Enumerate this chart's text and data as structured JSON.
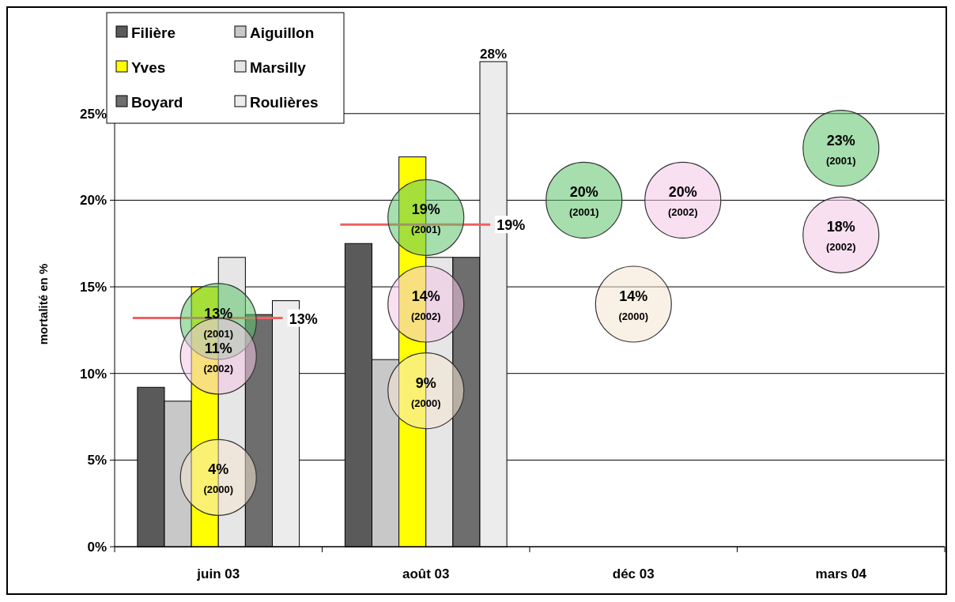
{
  "chart_data": {
    "type": "bar",
    "ylabel": "mortalité en %",
    "categories": [
      "juin 03",
      "août 03",
      "déc 03",
      "mars 04"
    ],
    "series": [
      {
        "name": "Filière",
        "color": "#5a5a5a",
        "values": [
          9.2,
          17.5,
          null,
          null
        ]
      },
      {
        "name": "Aiguillon",
        "color": "#c8c8c8",
        "values": [
          8.4,
          10.8,
          null,
          null
        ]
      },
      {
        "name": "Yves",
        "color": "#ffff00",
        "values": [
          15,
          22.5,
          null,
          null
        ]
      },
      {
        "name": "Marsilly",
        "color": "#e6e6e6",
        "values": [
          16.7,
          16.7,
          null,
          null
        ]
      },
      {
        "name": "Boyard",
        "color": "#6e6e6e",
        "values": [
          13.4,
          16.7,
          null,
          null
        ]
      },
      {
        "name": "Roulières",
        "color": "#ececec",
        "values": [
          14.2,
          28,
          null,
          null
        ],
        "value_labels": [
          null,
          "28%",
          null,
          null
        ]
      },
      {
        "type": "bubble",
        "name": "(2001)",
        "color": "#5cc36a",
        "values": [
          13,
          19,
          20,
          23
        ],
        "sizes": [
          1,
          1,
          1,
          1
        ],
        "value_labels": [
          "13%",
          "19%",
          "20%",
          "23%"
        ]
      },
      {
        "type": "bubble",
        "name": "(2002)",
        "color": "#f2c6e6",
        "values": [
          11,
          14,
          20,
          18
        ],
        "sizes": [
          1,
          1,
          1,
          1
        ],
        "value_labels": [
          "11%",
          "14%",
          "20%",
          "18%"
        ]
      },
      {
        "type": "bubble",
        "name": "(2000)",
        "color": "#f5e6d2",
        "values": [
          4,
          9,
          14,
          null
        ],
        "sizes": [
          1,
          1,
          1,
          null
        ],
        "value_labels": [
          "4%",
          "9%",
          "14%",
          null
        ]
      }
    ],
    "ylim": [
      0,
      28
    ],
    "yticks": [
      {
        "value": 0,
        "label": "0%"
      },
      {
        "value": 5,
        "label": "5%"
      },
      {
        "value": 10,
        "label": "10%"
      },
      {
        "value": 15,
        "label": "15%"
      },
      {
        "value": 20,
        "label": "20%"
      },
      {
        "value": 25,
        "label": "25%"
      }
    ],
    "grid": "y",
    "legend": "top left",
    "ref_lines": [
      {
        "axis": "y",
        "value": 13.2,
        "label": "13%",
        "color": "#f06060"
      },
      {
        "axis": "y",
        "value": 18.6,
        "label": "19%",
        "color": "#f06060"
      }
    ]
  }
}
